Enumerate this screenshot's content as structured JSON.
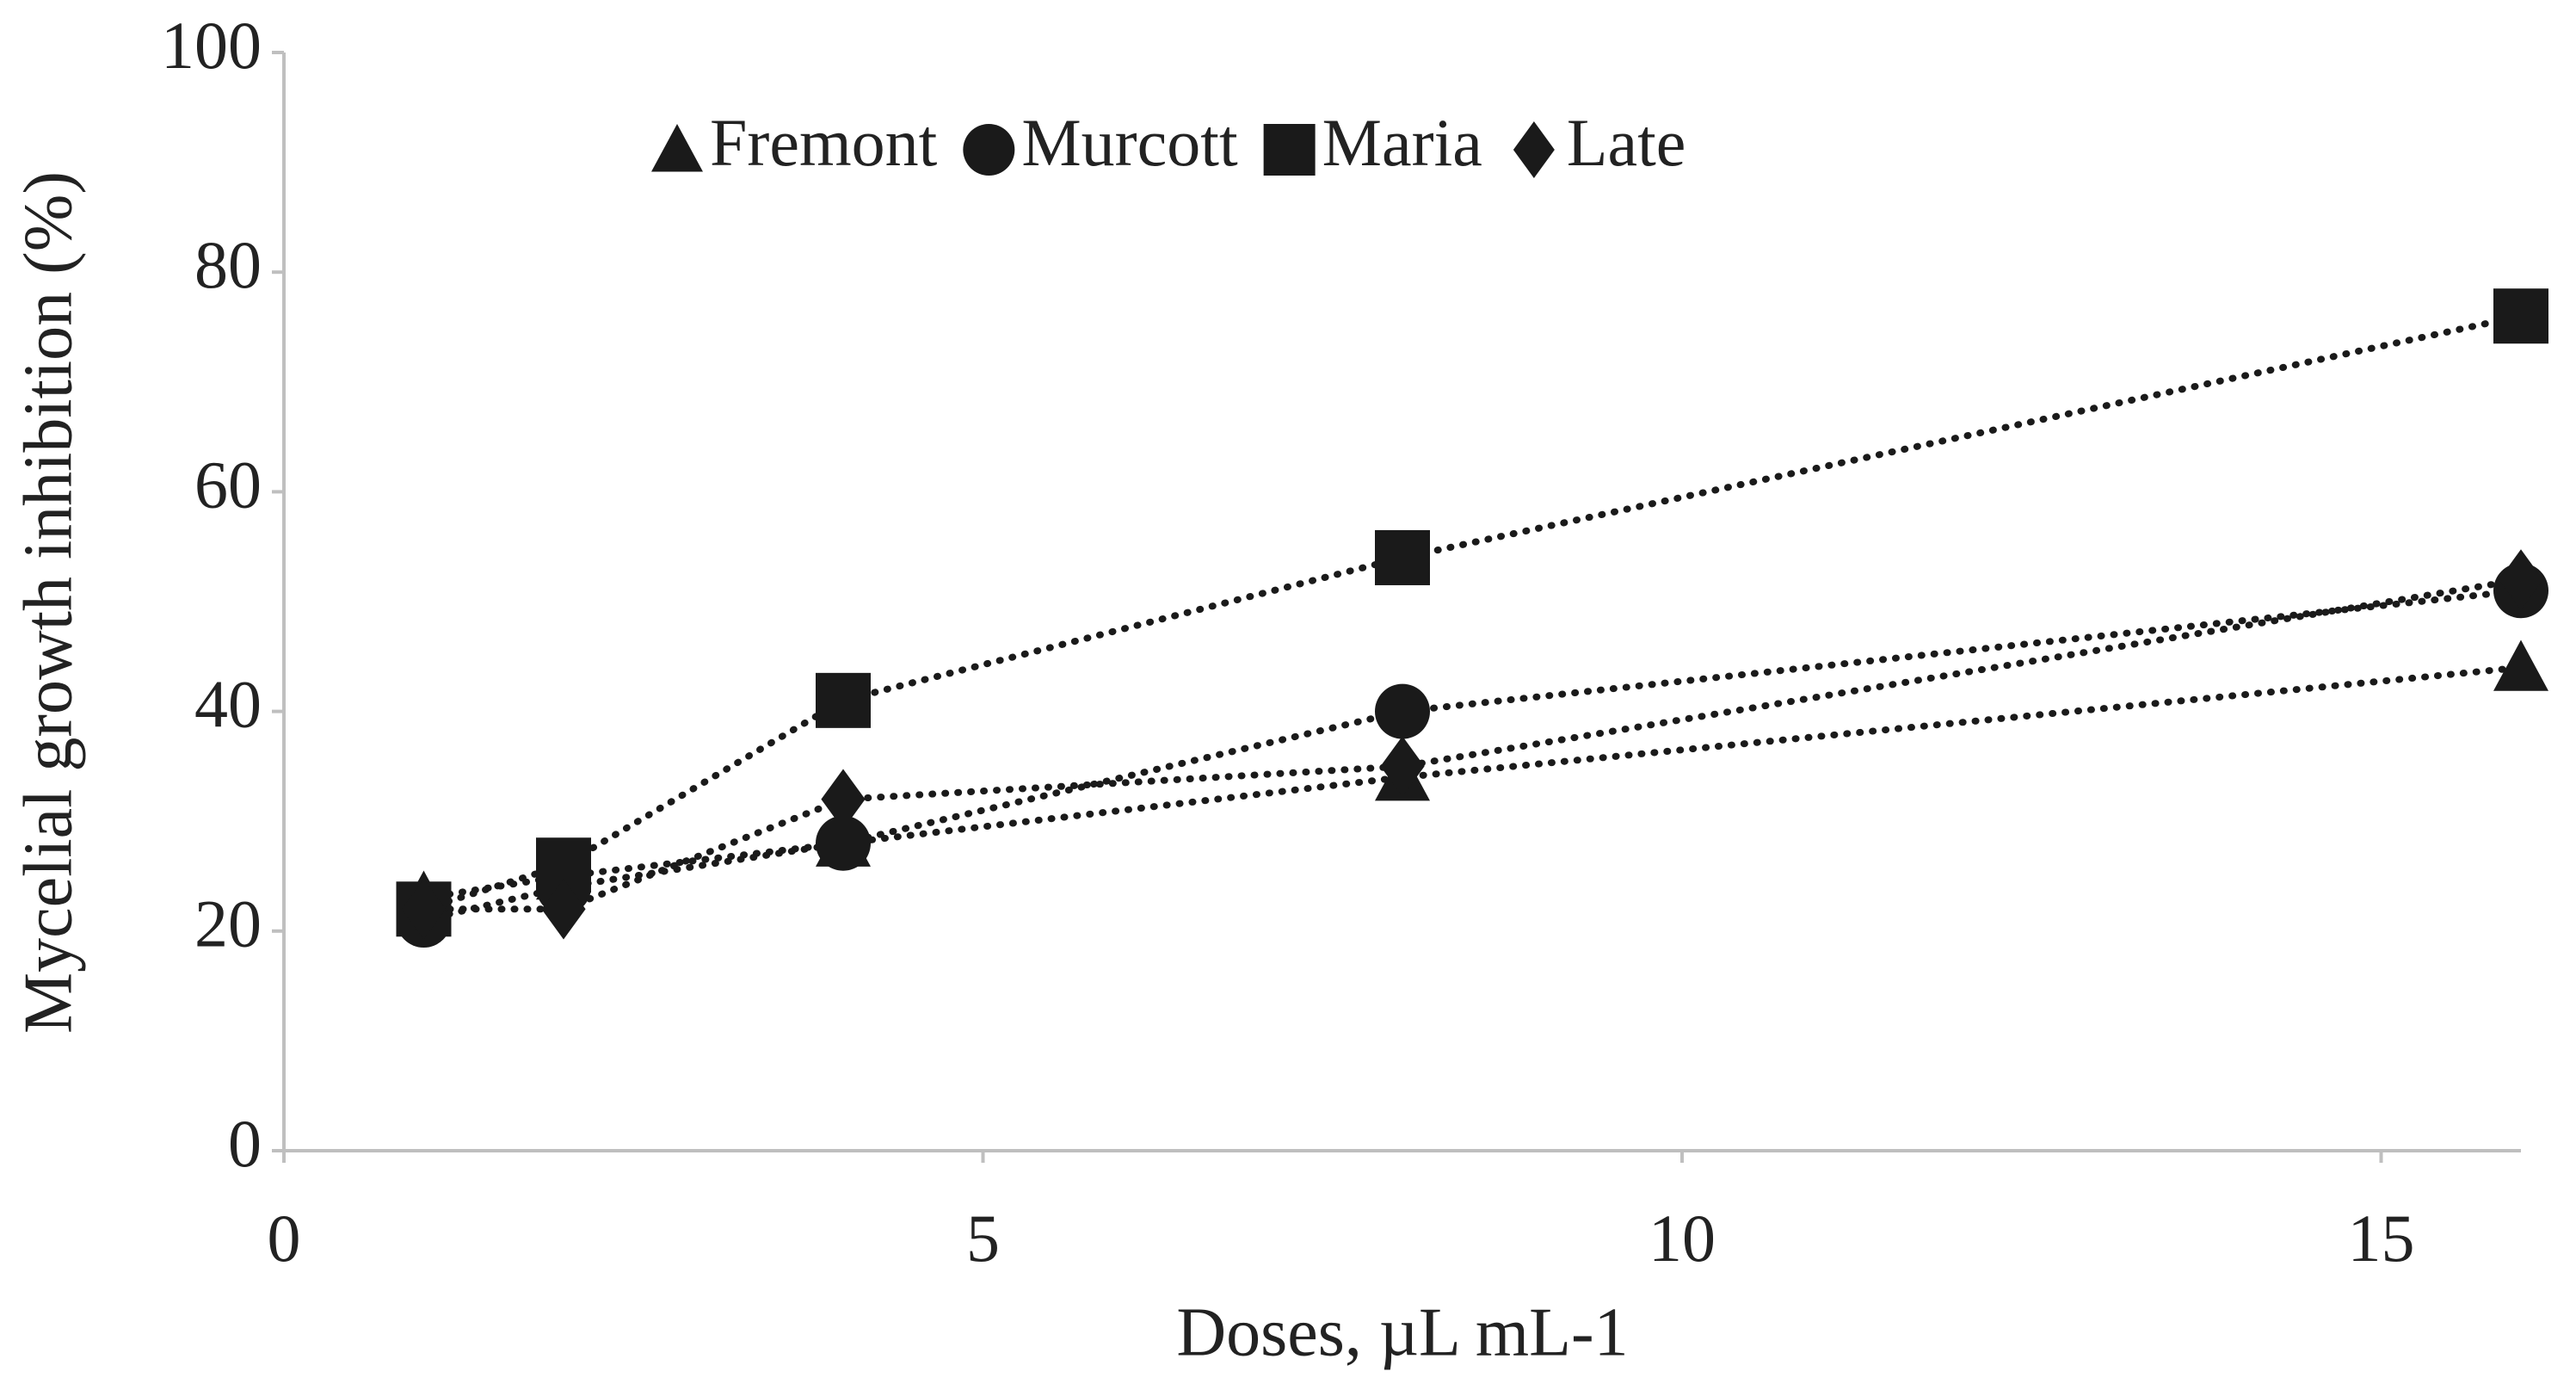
{
  "chart_data": {
    "type": "scatter",
    "x_label": "Doses, µL mL-1",
    "y_label": "Mycelial growth inhibition (%)",
    "x": [
      1,
      2,
      4,
      8,
      16
    ],
    "series": [
      {
        "name": "Fremont",
        "color": "#1a1a1a",
        "marker": "triangle",
        "values": [
          23,
          25,
          28,
          34,
          44
        ]
      },
      {
        "name": "Murcott",
        "color": "#1a1a1a",
        "marker": "circle",
        "values": [
          21,
          24,
          28,
          40,
          51
        ]
      },
      {
        "name": "Maria",
        "color": "#1a1a1a",
        "marker": "square",
        "values": [
          22,
          26,
          41,
          54,
          76
        ]
      },
      {
        "name": "Late",
        "color": "#1a1a1a",
        "marker": "diamond",
        "values": [
          22,
          22,
          32,
          35,
          52
        ]
      }
    ],
    "xlim": [
      0,
      16
    ],
    "xticks": [
      0,
      5,
      10,
      15
    ],
    "ylim": [
      0,
      100
    ],
    "yticks": [
      0,
      20,
      40,
      60,
      80,
      100
    ],
    "grid": false,
    "legend": "top"
  }
}
